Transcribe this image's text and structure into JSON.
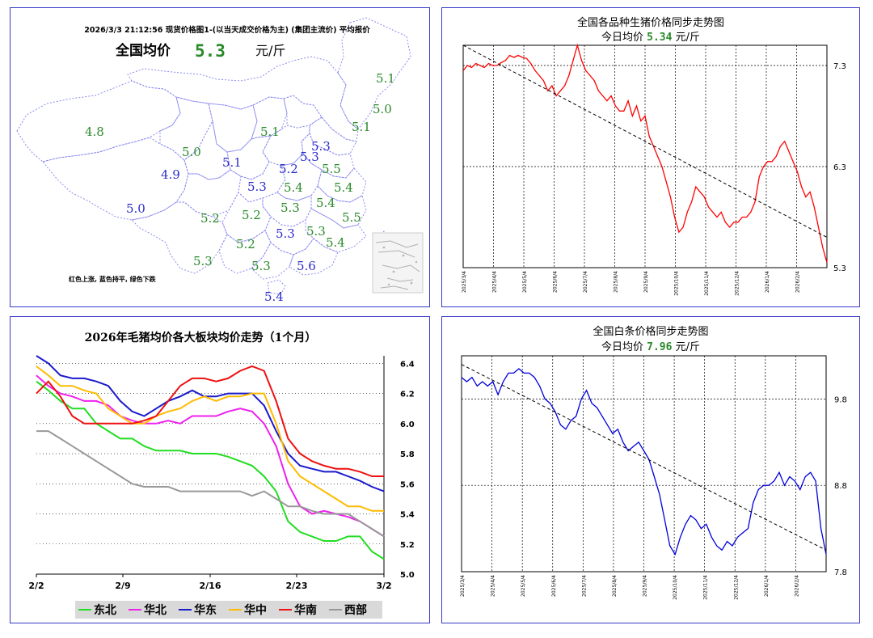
{
  "map_panel": {
    "header": "2026/3/3   21:12:56 现货价格图1-(以当天成交价格为主)   (集团主流价) 平均报价",
    "avg_label": "全国均价",
    "avg_value": "5.3",
    "avg_unit": "元/斤",
    "legend_note": "红色上涨, 蓝色持平, 绿色下跌",
    "colors": {
      "down": "#2a8a2a",
      "flat": "#2b2bc8",
      "up": "#d01010"
    },
    "provinces": [
      {
        "label": "5.1",
        "status": "down"
      },
      {
        "label": "5.0",
        "status": "down"
      },
      {
        "label": "5.1",
        "status": "down"
      },
      {
        "label": "4.8",
        "status": "down"
      },
      {
        "label": "5.0",
        "status": "down"
      },
      {
        "label": "5.1",
        "status": "flat"
      },
      {
        "label": "5.1",
        "status": "down"
      },
      {
        "label": "5.3",
        "status": "flat"
      },
      {
        "label": "5.3",
        "status": "flat"
      },
      {
        "label": "5.2",
        "status": "flat"
      },
      {
        "label": "5.5",
        "status": "down"
      },
      {
        "label": "4.9",
        "status": "flat"
      },
      {
        "label": "5.3",
        "status": "flat"
      },
      {
        "label": "5.4",
        "status": "down"
      },
      {
        "label": "5.4",
        "status": "down"
      },
      {
        "label": "5.0",
        "status": "flat"
      },
      {
        "label": "5.3",
        "status": "down"
      },
      {
        "label": "5.4",
        "status": "down"
      },
      {
        "label": "5.2",
        "status": "down"
      },
      {
        "label": "5.2",
        "status": "down"
      },
      {
        "label": "5.5",
        "status": "down"
      },
      {
        "label": "5.3",
        "status": "flat"
      },
      {
        "label": "5.3",
        "status": "down"
      },
      {
        "label": "5.2",
        "status": "down"
      },
      {
        "label": "5.4",
        "status": "down"
      },
      {
        "label": "5.3",
        "status": "down"
      },
      {
        "label": "5.3",
        "status": "down"
      },
      {
        "label": "5.6",
        "status": "flat"
      },
      {
        "label": "5.4",
        "status": "flat"
      }
    ]
  },
  "chart_data": [
    {
      "type": "line",
      "title": "全国各品种生猪价格同步走势图",
      "subtitle_label": "今日均价",
      "subtitle_value": "5.34",
      "subtitle_unit": "元/斤",
      "x_ticks": [
        "2025/3/4",
        "2025/4/4",
        "2025/5/4",
        "2025/6/4",
        "2025/7/4",
        "2025/8/4",
        "2025/9/4",
        "2025/10/4",
        "2025/11/4",
        "2025/12/4",
        "2026/1/4",
        "2026/2/4"
      ],
      "y_ticks": [
        7.3,
        6.3,
        5.3
      ],
      "ylim": [
        5.3,
        7.5
      ],
      "grid": true,
      "series": [
        {
          "color": "#ff0000",
          "values": [
            7.25,
            7.3,
            7.28,
            7.32,
            7.3,
            7.28,
            7.32,
            7.3,
            7.3,
            7.33,
            7.35,
            7.4,
            7.38,
            7.4,
            7.38,
            7.37,
            7.32,
            7.25,
            7.2,
            7.15,
            7.05,
            7.1,
            7.0,
            7.05,
            7.1,
            7.2,
            7.35,
            7.5,
            7.35,
            7.25,
            7.2,
            7.15,
            7.05,
            7.0,
            6.95,
            7.0,
            6.9,
            6.85,
            6.85,
            6.95,
            6.8,
            6.9,
            6.75,
            6.8,
            6.6,
            6.5,
            6.4,
            6.3,
            6.15,
            6.0,
            5.8,
            5.65,
            5.7,
            5.85,
            5.95,
            6.1,
            6.05,
            6.0,
            5.9,
            5.85,
            5.8,
            5.85,
            5.75,
            5.7,
            5.75,
            5.75,
            5.8,
            5.8,
            5.85,
            5.95,
            6.2,
            6.3,
            6.35,
            6.35,
            6.4,
            6.5,
            6.55,
            6.45,
            6.35,
            6.25,
            6.1,
            6.0,
            6.05,
            5.9,
            5.7,
            5.5,
            5.35
          ]
        },
        {
          "color": "#000000",
          "dashed": true,
          "values": [
            7.5,
            5.6
          ]
        }
      ]
    },
    {
      "type": "line",
      "title": "2026年毛猪均价各大板块均价走势（1个月）",
      "x_ticks": [
        "2/2",
        "2/9",
        "2/16",
        "2/23",
        "3/2"
      ],
      "y_ticks": [
        6.4,
        6.2,
        6.0,
        5.8,
        5.6,
        5.4,
        5.2,
        5.0
      ],
      "ylim": [
        5.0,
        6.45
      ],
      "grid": true,
      "legend_position": "bottom",
      "series": [
        {
          "name": "东北",
          "color": "#22dd22",
          "values": [
            6.28,
            6.22,
            6.15,
            6.1,
            6.1,
            6.0,
            5.95,
            5.9,
            5.9,
            5.85,
            5.82,
            5.82,
            5.82,
            5.8,
            5.8,
            5.8,
            5.78,
            5.75,
            5.72,
            5.65,
            5.55,
            5.35,
            5.28,
            5.25,
            5.22,
            5.22,
            5.25,
            5.25,
            5.15,
            5.1
          ]
        },
        {
          "name": "华北",
          "color": "#ee22ee",
          "values": [
            6.32,
            6.25,
            6.2,
            6.18,
            6.15,
            6.15,
            6.12,
            6.05,
            6.02,
            6.0,
            6.0,
            6.02,
            6.0,
            6.05,
            6.05,
            6.05,
            6.08,
            6.1,
            6.08,
            6.0,
            5.85,
            5.6,
            5.45,
            5.4,
            5.42,
            5.4,
            5.38,
            5.35,
            5.3,
            5.25
          ]
        },
        {
          "name": "华东",
          "color": "#1a1acc",
          "values": [
            6.45,
            6.4,
            6.32,
            6.3,
            6.3,
            6.28,
            6.25,
            6.15,
            6.08,
            6.05,
            6.1,
            6.15,
            6.18,
            6.22,
            6.18,
            6.18,
            6.2,
            6.2,
            6.2,
            6.12,
            5.95,
            5.8,
            5.72,
            5.7,
            5.68,
            5.68,
            5.65,
            5.62,
            5.58,
            5.55
          ]
        },
        {
          "name": "华中",
          "color": "#ffbb00",
          "values": [
            6.38,
            6.32,
            6.25,
            6.25,
            6.22,
            6.2,
            6.1,
            6.05,
            6.0,
            6.0,
            6.05,
            6.08,
            6.1,
            6.15,
            6.18,
            6.15,
            6.18,
            6.18,
            6.2,
            6.2,
            6.0,
            5.75,
            5.65,
            5.6,
            5.55,
            5.5,
            5.45,
            5.45,
            5.42,
            5.42
          ]
        },
        {
          "name": "华南",
          "color": "#ee1111",
          "values": [
            6.2,
            6.28,
            6.18,
            6.05,
            6.0,
            6.0,
            6.0,
            6.0,
            6.0,
            6.02,
            6.05,
            6.15,
            6.25,
            6.3,
            6.3,
            6.28,
            6.3,
            6.35,
            6.38,
            6.35,
            6.15,
            5.9,
            5.8,
            5.75,
            5.72,
            5.7,
            5.7,
            5.68,
            5.65,
            5.65
          ]
        },
        {
          "name": "西部",
          "color": "#999999",
          "values": [
            5.95,
            5.95,
            5.9,
            5.85,
            5.8,
            5.75,
            5.7,
            5.65,
            5.6,
            5.58,
            5.58,
            5.58,
            5.55,
            5.55,
            5.55,
            5.55,
            5.55,
            5.55,
            5.52,
            5.55,
            5.5,
            5.45,
            5.45,
            5.42,
            5.4,
            5.4,
            5.4,
            5.35,
            5.3,
            5.25
          ]
        }
      ]
    },
    {
      "type": "line",
      "title": "全国白条价格同步走势图",
      "subtitle_label": "今日均价",
      "subtitle_value": "7.96",
      "subtitle_unit": "元/斤",
      "x_ticks": [
        "2025/3/4",
        "2025/4/4",
        "2025/5/4",
        "2025/6/4",
        "2025/7/4",
        "2025/8/4",
        "2025/9/4",
        "2025/10/4",
        "2025/11/4",
        "2025/12/4",
        "2026/1/4",
        "2026/2/4"
      ],
      "y_ticks": [
        9.8,
        8.8,
        7.8
      ],
      "ylim": [
        7.8,
        10.3
      ],
      "grid": true,
      "series": [
        {
          "color": "#0000dd",
          "values": [
            10.05,
            10.0,
            10.05,
            9.95,
            10.0,
            9.95,
            10.0,
            9.85,
            10.0,
            10.1,
            10.1,
            10.15,
            10.1,
            10.1,
            10.05,
            9.95,
            9.8,
            9.75,
            9.65,
            9.5,
            9.45,
            9.55,
            9.6,
            9.8,
            9.9,
            9.75,
            9.7,
            9.6,
            9.5,
            9.4,
            9.45,
            9.3,
            9.2,
            9.25,
            9.3,
            9.2,
            9.1,
            8.9,
            8.7,
            8.4,
            8.1,
            8.0,
            8.2,
            8.35,
            8.45,
            8.4,
            8.3,
            8.35,
            8.2,
            8.1,
            8.05,
            8.15,
            8.1,
            8.2,
            8.25,
            8.3,
            8.6,
            8.75,
            8.8,
            8.8,
            8.85,
            8.95,
            8.8,
            8.9,
            8.85,
            8.75,
            8.9,
            8.95,
            8.85,
            8.3,
            8.0
          ]
        },
        {
          "color": "#000000",
          "dashed": true,
          "values": [
            10.2,
            8.05
          ]
        }
      ]
    }
  ]
}
